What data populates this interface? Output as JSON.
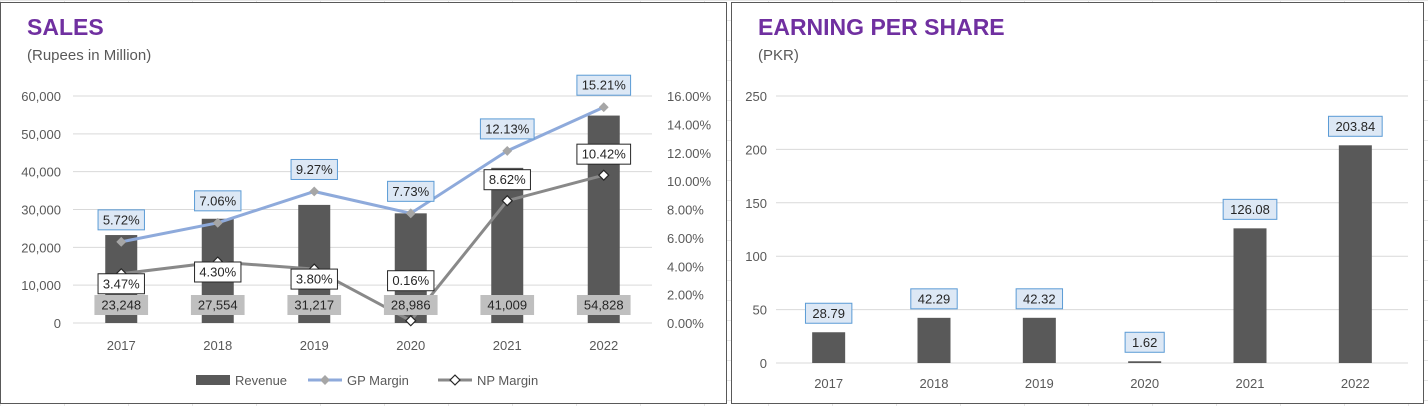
{
  "sales": {
    "title": "SALES",
    "subtitle": "(Rupees in Million)"
  },
  "eps": {
    "title": "EARNING PER SHARE",
    "subtitle": "(PKR)"
  },
  "colors": {
    "title": "#7030a0",
    "bar": "#595959",
    "gp_line": "#8eaadb",
    "np_line": "#898989",
    "revenue_label_bg": "#bfbfbf",
    "gp_label_bg": "#dde8f5",
    "gp_label_border": "#5b9bd5"
  },
  "chart_data": [
    {
      "type": "bar",
      "name": "SALES",
      "title": "SALES",
      "subtitle": "(Rupees in Million)",
      "categories": [
        "2017",
        "2018",
        "2019",
        "2020",
        "2021",
        "2022"
      ],
      "series": [
        {
          "name": "Revenue",
          "type": "bar",
          "axis": "left",
          "values": [
            23248,
            27554,
            31217,
            28986,
            41009,
            54828
          ],
          "labels": [
            "23,248",
            "27,554",
            "31,217",
            "28,986",
            "41,009",
            "54,828"
          ]
        },
        {
          "name": "GP Margin",
          "type": "line",
          "axis": "right",
          "values": [
            5.72,
            7.06,
            9.27,
            7.73,
            12.13,
            15.21
          ],
          "labels": [
            "5.72%",
            "7.06%",
            "9.27%",
            "7.73%",
            "12.13%",
            "15.21%"
          ]
        },
        {
          "name": "NP Margin",
          "type": "line",
          "axis": "right",
          "values": [
            3.47,
            4.3,
            3.8,
            0.16,
            8.62,
            10.42
          ],
          "labels": [
            "3.47%",
            "4.30%",
            "3.80%",
            "0.16%",
            "8.62%",
            "10.42%"
          ]
        }
      ],
      "ylim": [
        0,
        60000
      ],
      "y_ticks": [
        "0",
        "10,000",
        "20,000",
        "30,000",
        "40,000",
        "50,000",
        "60,000"
      ],
      "y2lim": [
        0,
        16
      ],
      "y2_ticks": [
        "0.00%",
        "2.00%",
        "4.00%",
        "6.00%",
        "8.00%",
        "10.00%",
        "12.00%",
        "14.00%",
        "16.00%"
      ],
      "grid": true,
      "legend_position": "bottom"
    },
    {
      "type": "bar",
      "name": "EARNING PER SHARE",
      "title": "EARNING PER SHARE",
      "subtitle": "(PKR)",
      "categories": [
        "2017",
        "2018",
        "2019",
        "2020",
        "2021",
        "2022"
      ],
      "values": [
        28.79,
        42.29,
        42.32,
        1.62,
        126.08,
        203.84
      ],
      "labels": [
        "28.79",
        "42.29",
        "42.32",
        "1.62",
        "126.08",
        "203.84"
      ],
      "ylim": [
        0,
        250
      ],
      "y_ticks": [
        "0",
        "50",
        "100",
        "150",
        "200",
        "250"
      ],
      "grid": true
    }
  ]
}
